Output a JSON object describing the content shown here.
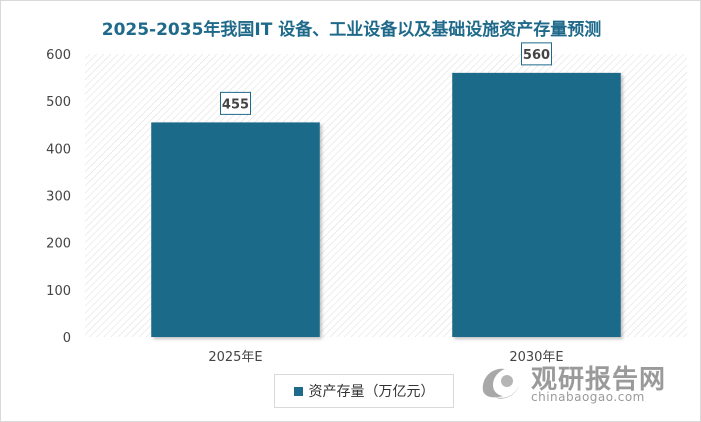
{
  "chart_data": {
    "type": "bar",
    "title": "2025-2035年我国IT 设备、工业设备以及基础设施资产存量预测",
    "categories": [
      "2025年E",
      "2030年E"
    ],
    "series": [
      {
        "name": "资产存量（万亿元）",
        "values": [
          455,
          560
        ],
        "color": "#1f6a8a"
      }
    ],
    "value_labels": [
      "455",
      "560"
    ],
    "y_ticks": [
      "0",
      "100",
      "200",
      "300",
      "400",
      "500",
      "600"
    ],
    "ylim": [
      0,
      600
    ],
    "grid": false,
    "legend_position": "bottom"
  },
  "watermark": {
    "text_cn": "观研报告网",
    "text_en": "chinabaogao.com"
  }
}
